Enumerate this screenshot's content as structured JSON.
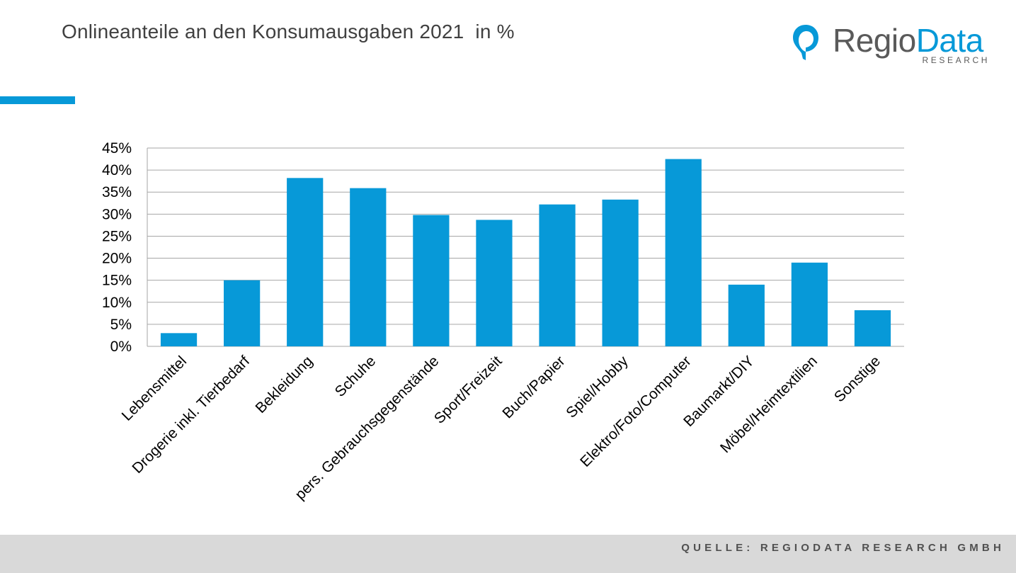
{
  "title": "Onlineanteile an den Konsumausgaben 2021  in %",
  "logo": {
    "name_part1": "Regio",
    "name_part2": "Data",
    "subtitle": "RESEARCH"
  },
  "footer": {
    "source": "QUELLE: REGIODATA RESEARCH GMBH"
  },
  "colors": {
    "accent": "#0799d8",
    "bar": "#0799d8",
    "gridline": "#a6a6a6",
    "text": "#404040",
    "footer_bg": "#d9d9d9"
  },
  "chart_data": {
    "type": "bar",
    "title": "",
    "xlabel": "",
    "ylabel": "",
    "ylim": [
      0,
      45
    ],
    "ytick_step": 5,
    "ytick_suffix": "%",
    "grid": true,
    "categories": [
      "Lebensmittel",
      "Drogerie inkl. Tierbedarf",
      "Bekleidung",
      "Schuhe",
      "pers. Gebrauchsgegenstände",
      "Sport/Freizeit",
      "Buch/Papier",
      "Spiel/Hobby",
      "Elektro/Foto/Computer",
      "Baumarkt/DIY",
      "Möbel/Heimtextilien",
      "Sonstige"
    ],
    "values": [
      3.0,
      15.0,
      38.2,
      35.9,
      29.8,
      28.7,
      32.2,
      33.3,
      42.5,
      14.0,
      19.0,
      8.2
    ]
  }
}
